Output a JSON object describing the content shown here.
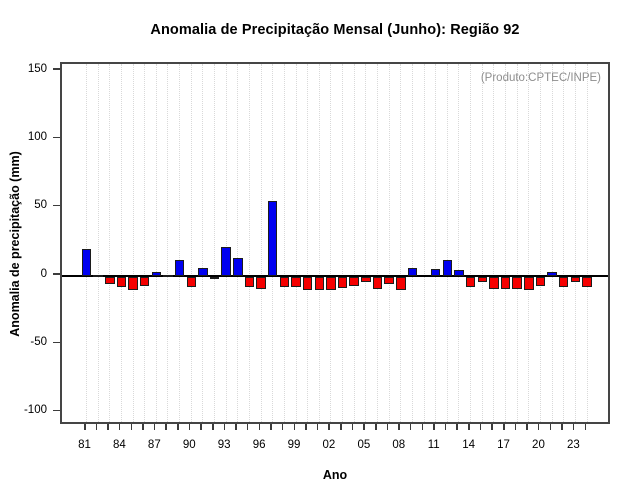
{
  "chart_data": {
    "type": "bar",
    "title": "Anomalia de Precipitação Mensal (Junho): Região 92",
    "annotation": "(Produto:CPTEC/INPE)",
    "xlabel": "Ano",
    "ylabel": "Anomalia de precipitação (mm)",
    "ylim": [
      -110,
      155
    ],
    "yticks": [
      150,
      100,
      50,
      0,
      -50,
      -100
    ],
    "x_tick_label_step": 3,
    "grid": "vertical-dotted",
    "legend": "none",
    "colors": {
      "positive": "#0000f0",
      "negative": "#f50000"
    },
    "categories": [
      "81",
      "82",
      "83",
      "84",
      "85",
      "86",
      "87",
      "88",
      "89",
      "90",
      "91",
      "92",
      "93",
      "94",
      "95",
      "96",
      "97",
      "98",
      "99",
      "00",
      "01",
      "02",
      "03",
      "04",
      "05",
      "06",
      "07",
      "08",
      "09",
      "10",
      "11",
      "12",
      "13",
      "14",
      "15",
      "16",
      "17",
      "18",
      "19",
      "20",
      "21",
      "22",
      "23",
      "24"
    ],
    "values": [
      20,
      0.3,
      -5,
      -7.5,
      -9.5,
      -6.5,
      3,
      0.8,
      11.5,
      -7,
      6,
      -1.5,
      21,
      13,
      -7.5,
      -8.5,
      55,
      -7,
      -7.5,
      -9.5,
      -9.5,
      -9.5,
      -8,
      -6.5,
      -4,
      -8.5,
      -5,
      -9.5,
      5.5,
      0,
      5,
      12,
      4.5,
      -7.5,
      -4,
      -8.5,
      -8.5,
      -8.5,
      -9.5,
      -6.5,
      3,
      -7,
      -4,
      -7
    ]
  }
}
